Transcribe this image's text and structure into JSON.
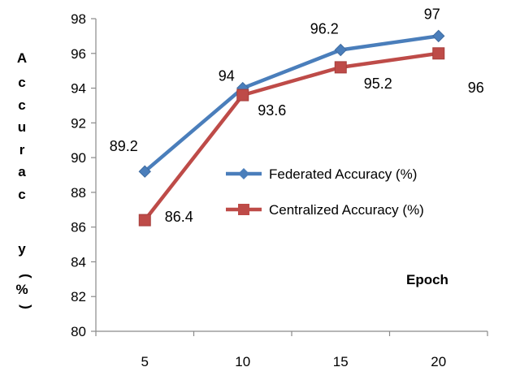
{
  "chart_data": {
    "type": "line",
    "categories": [
      "5",
      "10",
      "15",
      "20"
    ],
    "series": [
      {
        "name": "Federated Accuracy (%)",
        "values": [
          89.2,
          94,
          96.2,
          97
        ],
        "color": "#4a7ebb",
        "marker": "diamond"
      },
      {
        "name": "Centralized Accuracy (%)",
        "values": [
          86.4,
          93.6,
          95.2,
          96
        ],
        "color": "#be4b48",
        "marker": "square"
      }
    ],
    "data_labels": [
      [
        "89.2",
        "94",
        "96.2",
        "97"
      ],
      [
        "86.4",
        "93.6",
        "95.2",
        "96"
      ]
    ],
    "ylabel": "Accuracy (%)",
    "ylabel_chars": [
      "A",
      "c",
      "c",
      "u",
      "r",
      "a",
      "c",
      "y",
      "(",
      "%",
      ")"
    ],
    "xlabel": "Epoch",
    "ylim": [
      80,
      98
    ],
    "ytick_step": 2,
    "grid": false,
    "legend_position": "center-right"
  }
}
